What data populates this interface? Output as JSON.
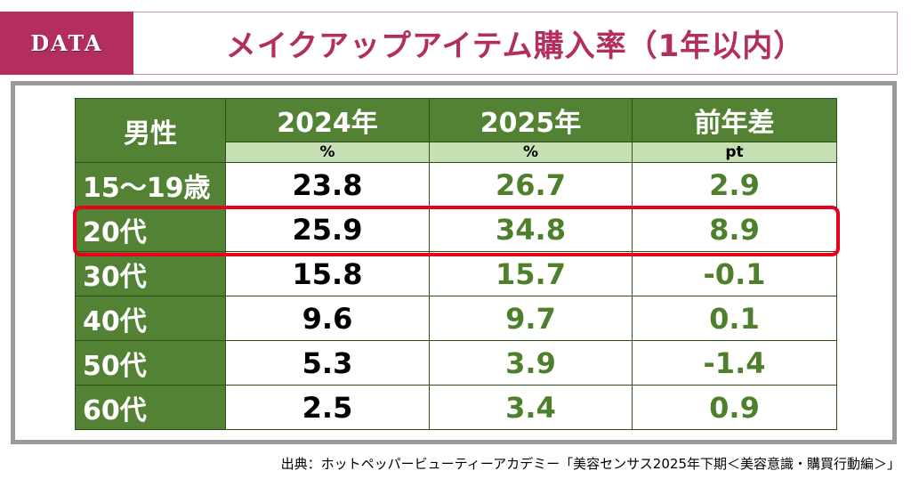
{
  "banner": {
    "tag": "DATA",
    "title": "メイクアップアイテム購入率（1年以内）",
    "accent_color": "#b32d5e"
  },
  "table": {
    "corner_label": "男性",
    "columns": [
      {
        "label": "2024年",
        "unit": "%"
      },
      {
        "label": "2025年",
        "unit": "%"
      },
      {
        "label": "前年差",
        "unit": "pt"
      }
    ],
    "rows": [
      {
        "label": "15～19歳",
        "v2024": "23.8",
        "v2025": "26.7",
        "diff": "2.9"
      },
      {
        "label": "20代",
        "v2024": "25.9",
        "v2025": "34.8",
        "diff": "8.9",
        "highlighted": true
      },
      {
        "label": "30代",
        "v2024": "15.8",
        "v2025": "15.7",
        "diff": "-0.1"
      },
      {
        "label": "40代",
        "v2024": "9.6",
        "v2025": "9.7",
        "diff": "0.1"
      },
      {
        "label": "50代",
        "v2024": "5.3",
        "v2025": "3.9",
        "diff": "-1.4"
      },
      {
        "label": "60代",
        "v2024": "2.5",
        "v2025": "3.4",
        "diff": "0.9"
      }
    ],
    "header_color": "#548235",
    "unit_row_color": "#c6e0b4",
    "highlight_color": "#e8001c"
  },
  "source": "出典：ホットペッパービューティーアカデミー「美容センサス2025年下期＜美容意識・購買行動編＞」"
}
